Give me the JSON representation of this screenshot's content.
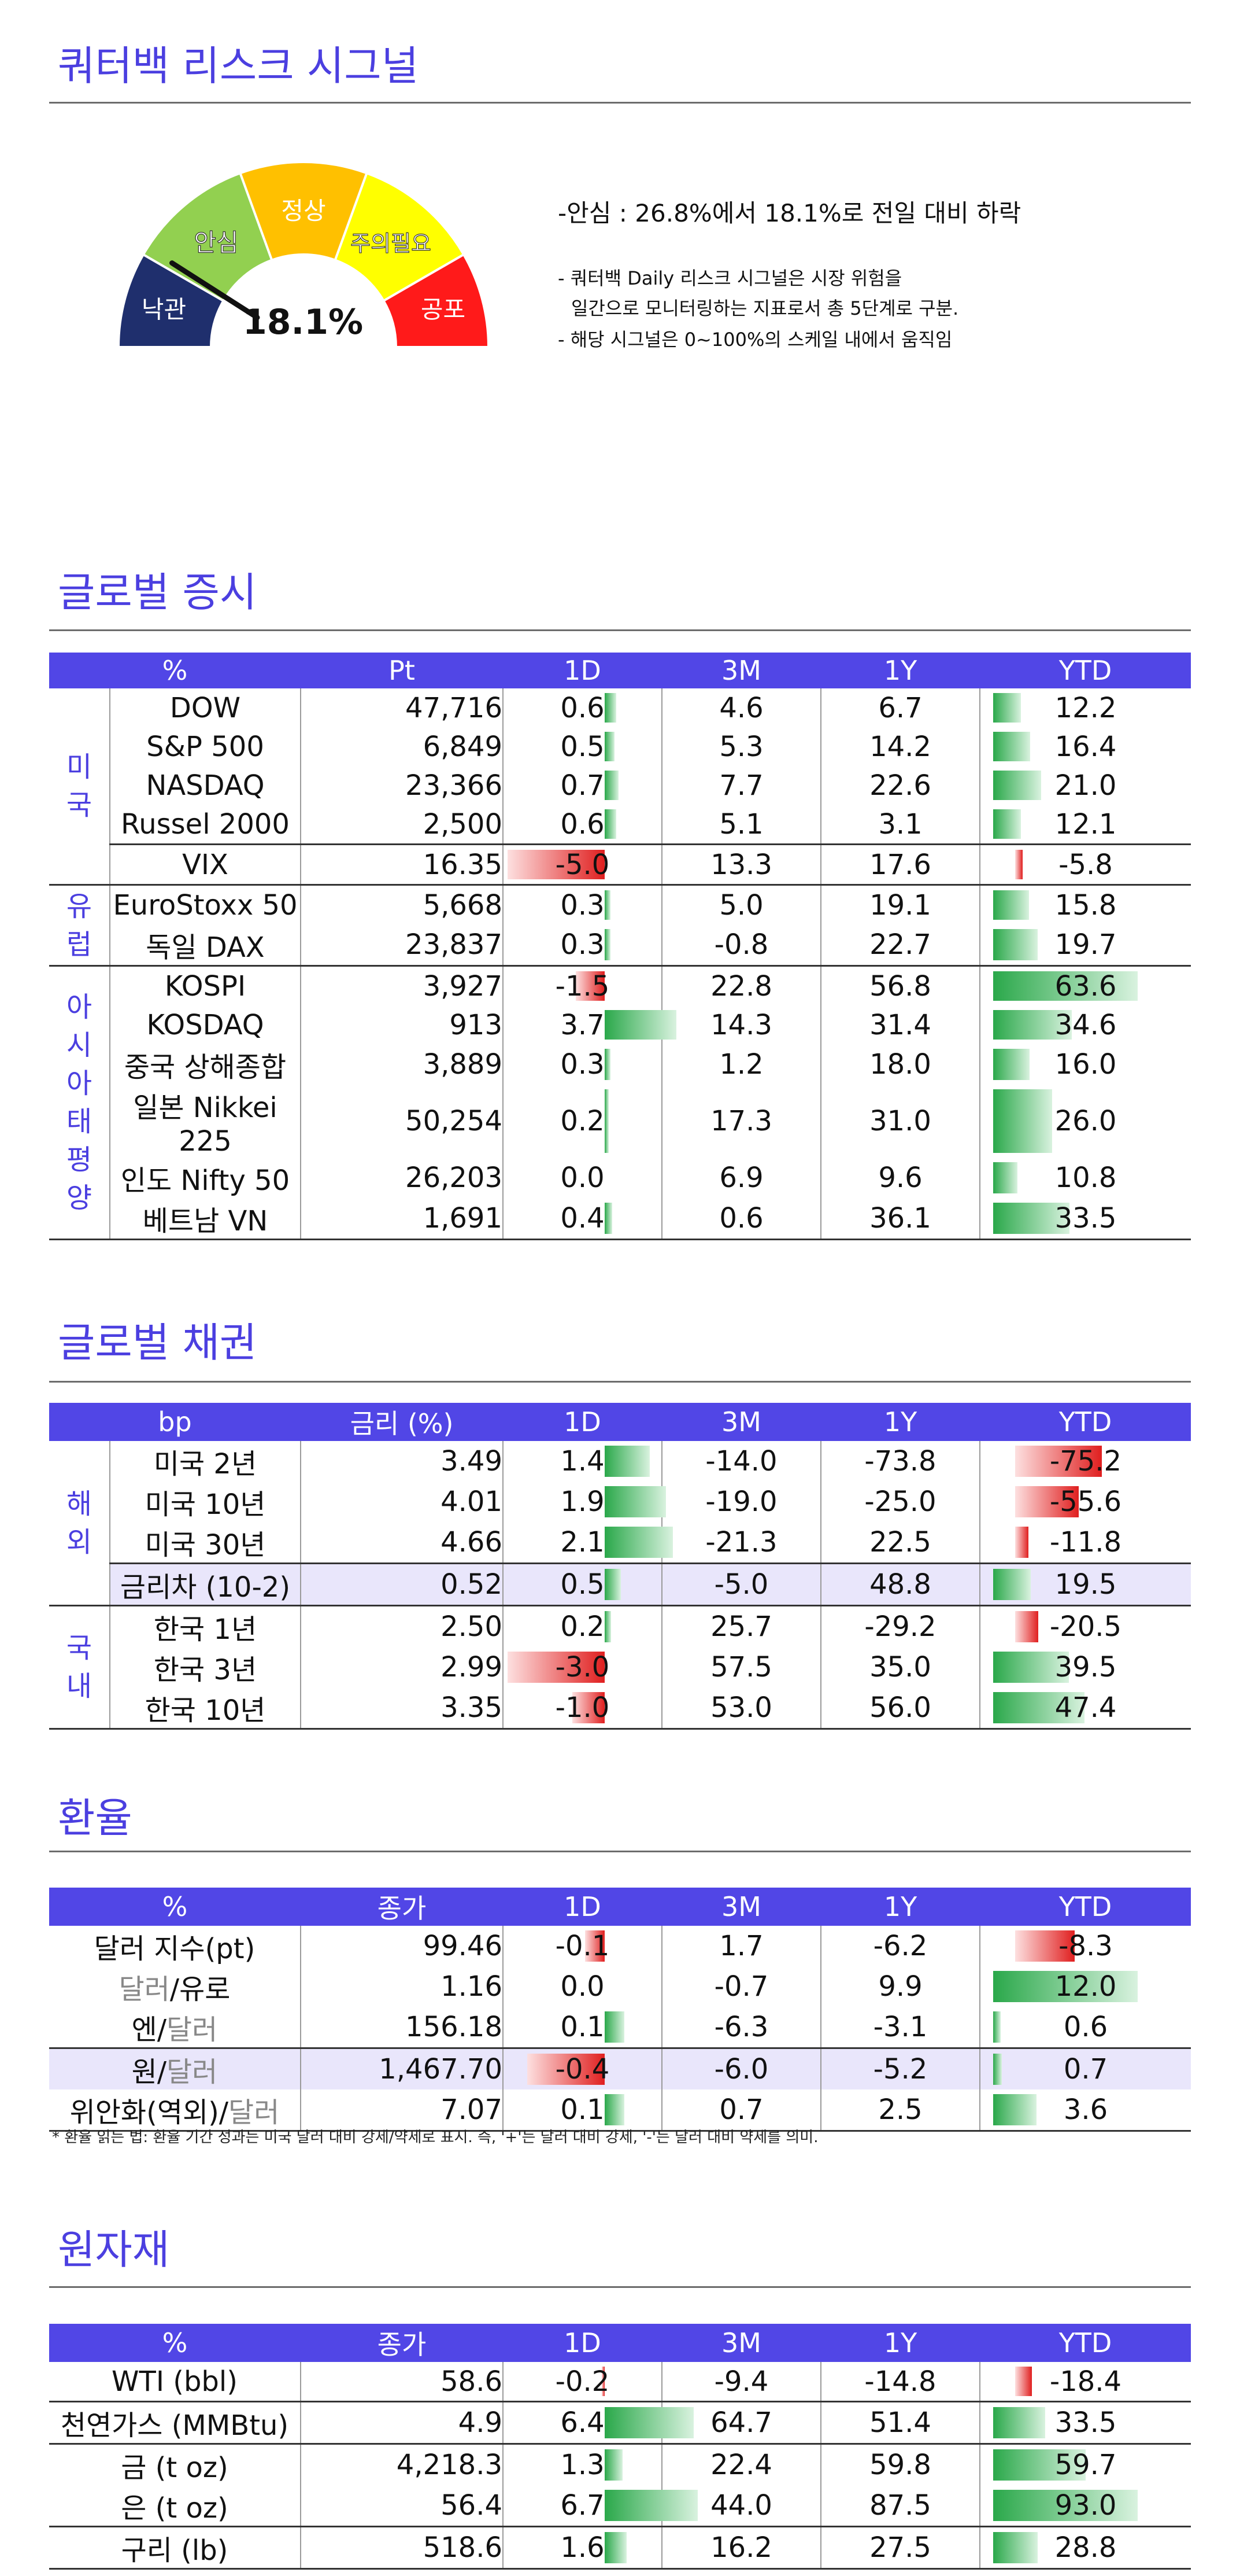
{
  "risk": {
    "title": "쿼터백 리스크 시그널",
    "levels": [
      "낙관",
      "안심",
      "정상",
      "주의필요",
      "공포"
    ],
    "level_colors": [
      "#1f2f6d",
      "#92d050",
      "#ffc000",
      "#ffff00",
      "#ff1a1a"
    ],
    "value_label": "18.1%",
    "value": 18.1,
    "summary": "-안심 : 26.8%에서 18.1%로 전일 대비 하락",
    "desc1": "- 쿼터백 Daily 리스크 시그널은 시장 위험을",
    "desc2": "일간으로 모니터링하는 지표로서 총 5단계로 구분.",
    "desc3": "- 해당 시그널은 0~100%의 스케일 내에서 움직임"
  },
  "equity": {
    "title": "글로벌 증시",
    "headers": [
      "%",
      "Pt",
      "1D",
      "3M",
      "1Y",
      "YTD"
    ],
    "groups": [
      {
        "label": "미국",
        "rows": [
          {
            "name": "DOW",
            "pt": "47,716",
            "d1": "0.6",
            "m3": "4.6",
            "y1": "6.7",
            "ytd": "12.2"
          },
          {
            "name": "S&P 500",
            "pt": "6,849",
            "d1": "0.5",
            "m3": "5.3",
            "y1": "14.2",
            "ytd": "16.4"
          },
          {
            "name": "NASDAQ",
            "pt": "23,366",
            "d1": "0.7",
            "m3": "7.7",
            "y1": "22.6",
            "ytd": "21.0"
          },
          {
            "name": "Russel 2000",
            "pt": "2,500",
            "d1": "0.6",
            "m3": "5.1",
            "y1": "3.1",
            "ytd": "12.1"
          },
          {
            "name": "VIX",
            "pt": "16.35",
            "d1": "-5.0",
            "m3": "13.3",
            "y1": "17.6",
            "ytd": "-5.8"
          }
        ]
      },
      {
        "label": "유럽",
        "rows": [
          {
            "name": "EuroStoxx 50",
            "pt": "5,668",
            "d1": "0.3",
            "m3": "5.0",
            "y1": "19.1",
            "ytd": "15.8"
          },
          {
            "name": "독일 DAX",
            "pt": "23,837",
            "d1": "0.3",
            "m3": "-0.8",
            "y1": "22.7",
            "ytd": "19.7"
          }
        ]
      },
      {
        "label": "아시아태평양",
        "rows": [
          {
            "name": "KOSPI",
            "pt": "3,927",
            "d1": "-1.5",
            "m3": "22.8",
            "y1": "56.8",
            "ytd": "63.6"
          },
          {
            "name": "KOSDAQ",
            "pt": "913",
            "d1": "3.7",
            "m3": "14.3",
            "y1": "31.4",
            "ytd": "34.6"
          },
          {
            "name": "중국 상해종합",
            "pt": "3,889",
            "d1": "0.3",
            "m3": "1.2",
            "y1": "18.0",
            "ytd": "16.0"
          },
          {
            "name": "일본 Nikkei 225",
            "pt": "50,254",
            "d1": "0.2",
            "m3": "17.3",
            "y1": "31.0",
            "ytd": "26.0"
          },
          {
            "name": "인도 Nifty 50",
            "pt": "26,203",
            "d1": "0.0",
            "m3": "6.9",
            "y1": "9.6",
            "ytd": "10.8"
          },
          {
            "name": "베트남 VN",
            "pt": "1,691",
            "d1": "0.4",
            "m3": "0.6",
            "y1": "36.1",
            "ytd": "33.5"
          }
        ]
      }
    ]
  },
  "bonds": {
    "title": "글로벌 채권",
    "headers": [
      "bp",
      "금리 (%)",
      "1D",
      "3M",
      "1Y",
      "YTD"
    ],
    "groups": [
      {
        "label": "해외",
        "rows": [
          {
            "name": "미국 2년",
            "pt": "3.49",
            "d1": "1.4",
            "m3": "-14.0",
            "y1": "-73.8",
            "ytd": "-75.2"
          },
          {
            "name": "미국 10년",
            "pt": "4.01",
            "d1": "1.9",
            "m3": "-19.0",
            "y1": "-25.0",
            "ytd": "-55.6"
          },
          {
            "name": "미국 30년",
            "pt": "4.66",
            "d1": "2.1",
            "m3": "-21.3",
            "y1": "22.5",
            "ytd": "-11.8"
          },
          {
            "name": "금리차 (10-2)",
            "pt": "0.52",
            "d1": "0.5",
            "m3": "-5.0",
            "y1": "48.8",
            "ytd": "19.5",
            "hl": true
          }
        ]
      },
      {
        "label": "국내",
        "rows": [
          {
            "name": "한국 1년",
            "pt": "2.50",
            "d1": "0.2",
            "m3": "25.7",
            "y1": "-29.2",
            "ytd": "-20.5"
          },
          {
            "name": "한국 3년",
            "pt": "2.99",
            "d1": "-3.0",
            "m3": "57.5",
            "y1": "35.0",
            "ytd": "39.5"
          },
          {
            "name": "한국 10년",
            "pt": "3.35",
            "d1": "-1.0",
            "m3": "53.0",
            "y1": "56.0",
            "ytd": "47.4"
          }
        ]
      }
    ]
  },
  "fx": {
    "title": "환율",
    "headers": [
      "%",
      "종가",
      "1D",
      "3M",
      "1Y",
      "YTD"
    ],
    "rows": [
      {
        "parts": [
          {
            "t": "달러 지수(pt)",
            "g": false
          }
        ],
        "pt": "99.46",
        "d1": "-0.1",
        "m3": "1.7",
        "y1": "-6.2",
        "ytd": "-8.3"
      },
      {
        "parts": [
          {
            "t": "달러",
            "g": true
          },
          {
            "t": "/유로",
            "g": false
          }
        ],
        "pt": "1.16",
        "d1": "0.0",
        "m3": "-0.7",
        "y1": "9.9",
        "ytd": "12.0"
      },
      {
        "parts": [
          {
            "t": "엔/",
            "g": false
          },
          {
            "t": "달러",
            "g": true
          }
        ],
        "pt": "156.18",
        "d1": "0.1",
        "m3": "-6.3",
        "y1": "-3.1",
        "ytd": "0.6"
      },
      {
        "parts": [
          {
            "t": "원/",
            "g": false
          },
          {
            "t": "달러",
            "g": true
          }
        ],
        "pt": "1,467.70",
        "d1": "-0.4",
        "m3": "-6.0",
        "y1": "-5.2",
        "ytd": "0.7",
        "hl": true
      },
      {
        "parts": [
          {
            "t": "위안화(역외)/",
            "g": false
          },
          {
            "t": "달러",
            "g": true
          }
        ],
        "pt": "7.07",
        "d1": "0.1",
        "m3": "0.7",
        "y1": "2.5",
        "ytd": "3.6"
      }
    ],
    "note": "* 환율 읽는 법: 환율 기간 성과는 미국 달러 대비 강세/약세로 표시. 즉, '+'는 달러 대비 강세, '-'는 달러 대비 약세를 의미."
  },
  "commodities": {
    "title": "원자재",
    "headers": [
      "%",
      "종가",
      "1D",
      "3M",
      "1Y",
      "YTD"
    ],
    "rows": [
      {
        "name": "WTI (bbl)",
        "pt": "58.6",
        "d1": "-0.2",
        "m3": "-9.4",
        "y1": "-14.8",
        "ytd": "-18.4"
      },
      {
        "name": "천연가스 (MMBtu)",
        "pt": "4.9",
        "d1": "6.4",
        "m3": "64.7",
        "y1": "51.4",
        "ytd": "33.5",
        "gs": true
      },
      {
        "name": "금 (t oz)",
        "pt": "4,218.3",
        "d1": "1.3",
        "m3": "22.4",
        "y1": "59.8",
        "ytd": "59.7",
        "gs": true
      },
      {
        "name": "은 (t oz)",
        "pt": "56.4",
        "d1": "6.7",
        "m3": "44.0",
        "y1": "87.5",
        "ytd": "93.0"
      },
      {
        "name": "구리 (lb)",
        "pt": "518.6",
        "d1": "1.6",
        "m3": "16.2",
        "y1": "27.5",
        "ytd": "28.8",
        "gs": true
      }
    ]
  }
}
